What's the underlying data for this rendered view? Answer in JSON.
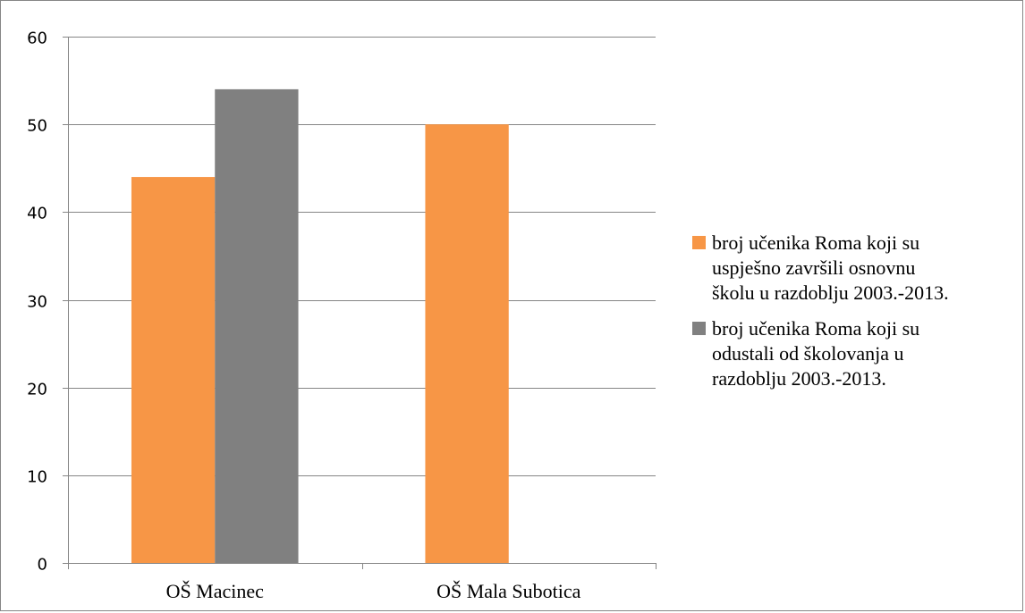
{
  "chart_data": {
    "type": "bar",
    "categories": [
      "OŠ Macinec",
      "OŠ Mala Subotica"
    ],
    "series": [
      {
        "name": "broj učenika Roma koji su\nuspješno završili osnovnu\nškolu u razdoblju 2003.-2013.",
        "values": [
          44,
          50
        ],
        "color": "#f79646"
      },
      {
        "name": "broj učenika Roma koji su\nodustali od školovanja u\nrazdoblju 2003.-2013.",
        "values": [
          54,
          0
        ],
        "color": "#808080"
      }
    ],
    "ylim": [
      0,
      60
    ],
    "yticks": [
      0,
      10,
      20,
      30,
      40,
      50,
      60
    ],
    "grid": true,
    "legend_position": "right",
    "title": "",
    "xlabel": "",
    "ylabel": ""
  }
}
